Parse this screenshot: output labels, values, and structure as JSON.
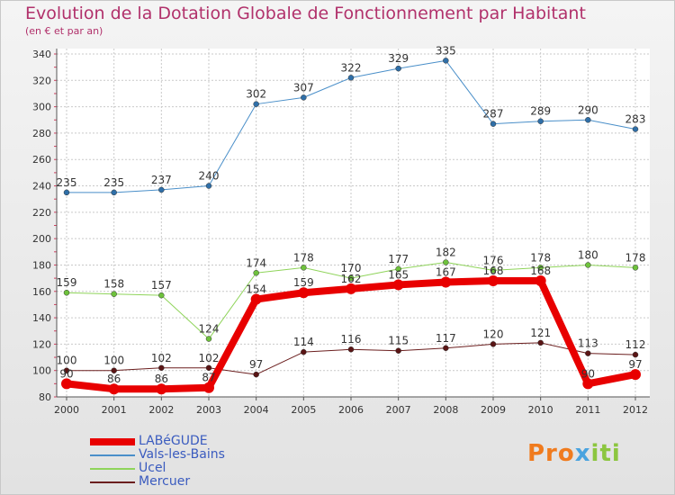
{
  "header": {
    "title": "Evolution de la Dotation Globale de Fonctionnement par Habitant",
    "subtitle": "(en € et par an)"
  },
  "logo": {
    "text": "Proxiti",
    "parts": [
      "Pro",
      "x",
      "iti"
    ]
  },
  "colors": {
    "title": "#b1316b",
    "axis_text": "#333333",
    "grid": "#c9c9c9",
    "legend_text": "#3a5bbf"
  },
  "chart_data": {
    "type": "line",
    "title": "Evolution de la Dotation Globale de Fonctionnement par Habitant",
    "ylabel": "(en € et par an)",
    "xlabel": "",
    "x": [
      "2000",
      "2001",
      "2002",
      "2003",
      "2004",
      "2005",
      "2006",
      "2007",
      "2008",
      "2009",
      "2010",
      "2011",
      "2012"
    ],
    "ylim": [
      80,
      340
    ],
    "yticks": [
      80,
      100,
      120,
      140,
      160,
      180,
      200,
      220,
      240,
      260,
      280,
      300,
      320,
      340
    ],
    "grid": true,
    "legend_position": "bottom-left",
    "series": [
      {
        "name": "Vals-les-Bains",
        "color": "#4a8fc9",
        "marker": "#2f6fa8",
        "width": 1,
        "values": [
          235,
          235,
          237,
          240,
          302,
          307,
          322,
          329,
          335,
          287,
          289,
          290,
          283
        ],
        "labels": [
          "235",
          "235",
          "237",
          "240",
          "302",
          "307",
          "322",
          "329",
          "335",
          "287",
          "289",
          "290",
          "283"
        ]
      },
      {
        "name": "Ucel",
        "color": "#8fd45a",
        "marker": "#6ec23c",
        "width": 1,
        "values": [
          159,
          158,
          157,
          124,
          174,
          178,
          170,
          177,
          182,
          176,
          178,
          180,
          178
        ],
        "labels": [
          "159",
          "158",
          "157",
          "124",
          "174",
          "178",
          "170",
          "177",
          "182",
          "176",
          "178",
          "180",
          "178"
        ]
      },
      {
        "name": "Mercuer",
        "color": "#6b1e1e",
        "marker": "#5a1515",
        "width": 1,
        "values": [
          100,
          100,
          102,
          102,
          97,
          114,
          116,
          115,
          117,
          120,
          121,
          113,
          112
        ],
        "labels": [
          "100",
          "100",
          "102",
          "102",
          "97",
          "114",
          "116",
          "115",
          "117",
          "120",
          "121",
          "113",
          "112"
        ]
      },
      {
        "name": "LABéGUDE",
        "color": "#e80000",
        "marker": "#e80000",
        "width": 8,
        "values": [
          90,
          86,
          86,
          87,
          154,
          159,
          162,
          165,
          167,
          168,
          168,
          90,
          97
        ],
        "labels": [
          "90",
          "86",
          "86",
          "87",
          "154",
          "159",
          "162",
          "165",
          "167",
          "168",
          "168",
          "90",
          "97"
        ]
      }
    ],
    "legend_order": [
      "LABéGUDE",
      "Vals-les-Bains",
      "Ucel",
      "Mercuer"
    ]
  }
}
